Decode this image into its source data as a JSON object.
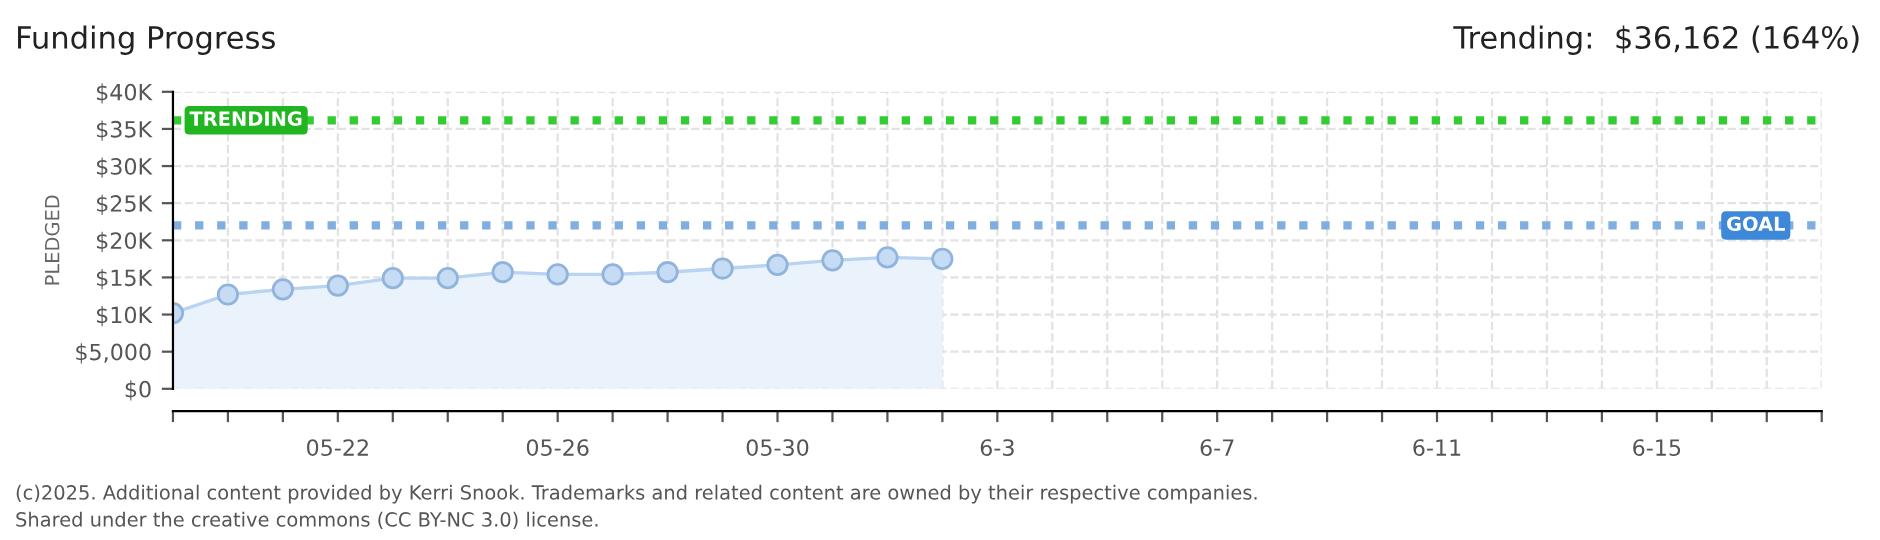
{
  "chart_data": {
    "type": "area",
    "title": "Funding Progress",
    "ylabel": "PLEDGED",
    "x": [
      "2025-05-19",
      "2025-05-20",
      "2025-05-21",
      "2025-05-22",
      "2025-05-23",
      "2025-05-24",
      "2025-05-25",
      "2025-05-26",
      "2025-05-27",
      "2025-05-28",
      "2025-05-29",
      "2025-05-30",
      "2025-05-31",
      "2025-06-01",
      "2025-06-02"
    ],
    "series": [
      {
        "color": "#b8d4f0",
        "values": [
          10200,
          12700,
          13400,
          13900,
          14900,
          14900,
          15700,
          15400,
          15400,
          15700,
          16200,
          16700,
          17300,
          17700,
          17500
        ]
      }
    ],
    "marker": "circle",
    "grid": true,
    "xlim": [
      "2025-05-19",
      "2025-06-18"
    ],
    "xticks": [
      {
        "value": "2025-05-19",
        "label": null
      },
      {
        "value": "2025-05-20",
        "label": null
      },
      {
        "value": "2025-05-21",
        "label": null
      },
      {
        "value": "2025-05-22",
        "label": "05-22"
      },
      {
        "value": "2025-05-23",
        "label": null
      },
      {
        "value": "2025-05-24",
        "label": null
      },
      {
        "value": "2025-05-25",
        "label": null
      },
      {
        "value": "2025-05-26",
        "label": "05-26"
      },
      {
        "value": "2025-05-27",
        "label": null
      },
      {
        "value": "2025-05-28",
        "label": null
      },
      {
        "value": "2025-05-29",
        "label": null
      },
      {
        "value": "2025-05-30",
        "label": "05-30"
      },
      {
        "value": "2025-05-31",
        "label": null
      },
      {
        "value": "2025-06-01",
        "label": null
      },
      {
        "value": "2025-06-02",
        "label": null
      },
      {
        "value": "2025-06-03",
        "label": "6-3"
      },
      {
        "value": "2025-06-04",
        "label": null
      },
      {
        "value": "2025-06-05",
        "label": null
      },
      {
        "value": "2025-06-06",
        "label": null
      },
      {
        "value": "2025-06-07",
        "label": "6-7"
      },
      {
        "value": "2025-06-08",
        "label": null
      },
      {
        "value": "2025-06-09",
        "label": null
      },
      {
        "value": "2025-06-10",
        "label": null
      },
      {
        "value": "2025-06-11",
        "label": "6-11"
      },
      {
        "value": "2025-06-12",
        "label": null
      },
      {
        "value": "2025-06-13",
        "label": null
      },
      {
        "value": "2025-06-14",
        "label": null
      },
      {
        "value": "2025-06-15",
        "label": "6-15"
      },
      {
        "value": "2025-06-16",
        "label": null
      },
      {
        "value": "2025-06-17",
        "label": null
      },
      {
        "value": "2025-06-18",
        "label": null
      }
    ],
    "ylim": [
      0,
      40000
    ],
    "yticks": [
      {
        "value": 0,
        "label": "$0"
      },
      {
        "value": 5000,
        "label": "$5,000"
      },
      {
        "value": 10000,
        "label": "$10K"
      },
      {
        "value": 15000,
        "label": "$15K"
      },
      {
        "value": 20000,
        "label": "$20K"
      },
      {
        "value": 25000,
        "label": "$25K"
      },
      {
        "value": 30000,
        "label": "$30K"
      },
      {
        "value": 35000,
        "label": "$35K"
      },
      {
        "value": 40000,
        "label": "$40K"
      }
    ],
    "ref_lines": [
      {
        "axis": "y",
        "value": 36162,
        "label": "TRENDING",
        "color": "#33cc33",
        "line_style": "dotted"
      },
      {
        "axis": "y",
        "value": 22000,
        "label": "GOAL",
        "color": "#80aee0",
        "line_style": "dotted"
      }
    ],
    "annotations": [
      "Trending:  $36,162 (164%)",
      "(c)2025. Additional content provided by Kerri Snook. Trademarks and related content are owned by their respective companies.",
      "Shared under the creative commons (CC BY-NC 3.0) license."
    ]
  }
}
